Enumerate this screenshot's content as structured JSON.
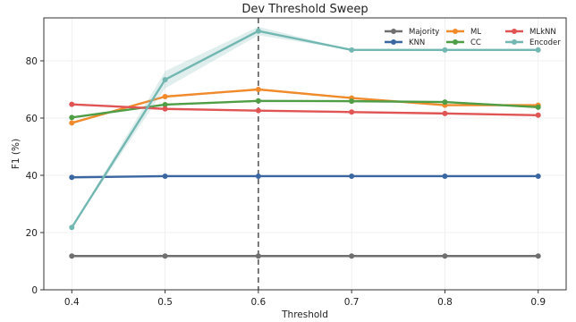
{
  "chart_data": {
    "type": "line",
    "title": "Dev Threshold Sweep",
    "xlabel": "Threshold",
    "ylabel": "F1 (%)",
    "x": [
      0.4,
      0.5,
      0.6,
      0.7,
      0.8,
      0.9
    ],
    "x_tick_labels": [
      "0.4",
      "0.5",
      "0.6",
      "0.7",
      "0.8",
      "0.9"
    ],
    "xlim": [
      0.37,
      0.93
    ],
    "ylim": [
      0,
      95
    ],
    "y_ticks": [
      0,
      20,
      40,
      60,
      80
    ],
    "y_tick_labels": [
      "0",
      "20",
      "40",
      "60",
      "80"
    ],
    "grid": true,
    "legend_position": "top-right",
    "reference_line_x": 0.6,
    "series": [
      {
        "name": "Majority",
        "color": "#6f6f6f",
        "values": [
          11.8,
          11.8,
          11.8,
          11.8,
          11.8,
          11.8
        ]
      },
      {
        "name": "KNN",
        "color": "#3a67a1",
        "values": [
          39.3,
          39.7,
          39.7,
          39.7,
          39.7,
          39.7
        ]
      },
      {
        "name": "ML",
        "color": "#f08a2b",
        "values": [
          58.3,
          67.5,
          70.0,
          67.0,
          64.5,
          64.5
        ]
      },
      {
        "name": "CC",
        "color": "#4f9d45",
        "values": [
          60.2,
          64.7,
          66.0,
          65.9,
          65.6,
          63.8
        ]
      },
      {
        "name": "MLkNN",
        "color": "#e05454",
        "values": [
          64.8,
          63.2,
          62.6,
          62.1,
          61.6,
          61.0
        ]
      },
      {
        "name": "Encoder",
        "color": "#72b7b2",
        "values": [
          21.8,
          73.4,
          90.4,
          83.8,
          83.8,
          83.8
        ],
        "band": [
          0,
          3.0,
          1.5,
          0,
          0,
          0
        ]
      }
    ]
  }
}
